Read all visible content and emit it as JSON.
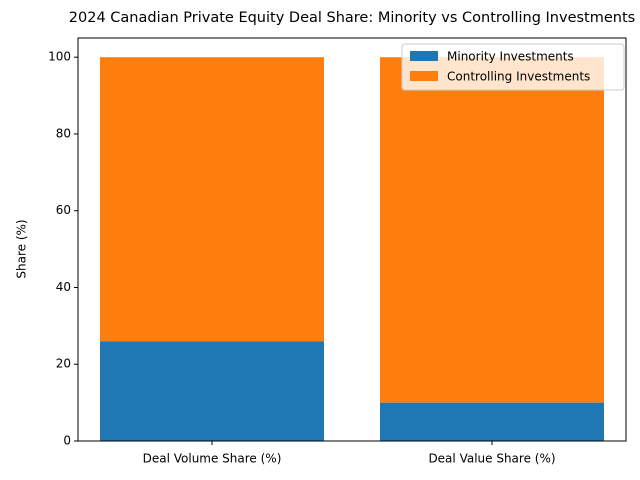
{
  "chart_data": {
    "type": "bar",
    "stacked": true,
    "title": "2024 Canadian Private Equity Deal Share: Minority vs Controlling Investments",
    "y_label": "Share (%)",
    "categories": [
      "Deal Volume Share (%)",
      "Deal Value Share (%)"
    ],
    "series": [
      {
        "name": "Minority Investments",
        "color": "#1f77b4",
        "values": [
          26,
          10
        ]
      },
      {
        "name": "Controlling Investments",
        "color": "#ff7f0e",
        "values": [
          74,
          90
        ]
      }
    ],
    "ylim": [
      0,
      105
    ],
    "yticks": [
      0,
      20,
      40,
      60,
      80,
      100
    ],
    "legend": "upper right"
  }
}
